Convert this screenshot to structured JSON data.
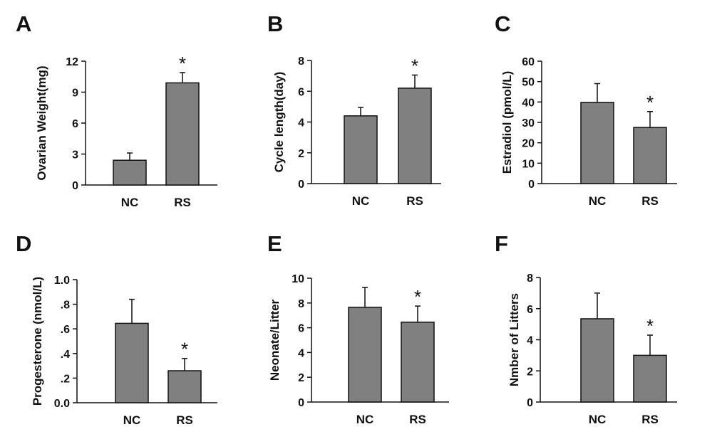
{
  "colors": {
    "bar": "#808080",
    "axis": "#111111"
  },
  "chart_data": [
    {
      "panel": "A",
      "type": "bar",
      "categories": [
        "NC",
        "RS"
      ],
      "values": [
        2.4,
        9.9
      ],
      "errors": [
        0.7,
        1.0
      ],
      "significance": [
        "",
        "*"
      ],
      "ylabel": "Ovarian Weight(mg)",
      "ylim": [
        0,
        12
      ],
      "yticks": [
        0,
        3,
        6,
        9,
        12
      ],
      "ytick_labels": [
        "0",
        "3",
        "6",
        "9",
        "12"
      ]
    },
    {
      "panel": "B",
      "type": "bar",
      "categories": [
        "NC",
        "RS"
      ],
      "values": [
        4.4,
        6.2
      ],
      "errors": [
        0.55,
        0.85
      ],
      "significance": [
        "",
        "*"
      ],
      "ylabel": "Cycle length(day)",
      "ylim": [
        0,
        8
      ],
      "yticks": [
        0,
        2,
        4,
        6,
        8
      ],
      "ytick_labels": [
        "0",
        "2",
        "4",
        "6",
        "8"
      ]
    },
    {
      "panel": "C",
      "type": "bar",
      "categories": [
        "NC",
        "RS"
      ],
      "values": [
        39.8,
        27.5
      ],
      "errors": [
        9.2,
        7.8
      ],
      "significance": [
        "",
        "*"
      ],
      "ylabel": "Estradiol (pmol/L)",
      "ylim": [
        0,
        60
      ],
      "yticks": [
        0,
        10,
        20,
        30,
        40,
        50,
        60
      ],
      "ytick_labels": [
        "0",
        "10",
        "20",
        "30",
        "40",
        "50",
        "60"
      ]
    },
    {
      "panel": "D",
      "type": "bar",
      "categories": [
        "NC",
        "RS"
      ],
      "values": [
        0.645,
        0.26
      ],
      "errors": [
        0.195,
        0.1
      ],
      "significance": [
        "",
        "*"
      ],
      "ylabel": "Progesterone (nmol/L)",
      "ylim": [
        0,
        1.0
      ],
      "yticks": [
        0,
        0.2,
        0.4,
        0.6,
        0.8,
        1.0
      ],
      "ytick_labels": [
        "0.0",
        ".2",
        ".4",
        ".6",
        ".8",
        "1.0"
      ]
    },
    {
      "panel": "E",
      "type": "bar",
      "categories": [
        "NC",
        "RS"
      ],
      "values": [
        7.65,
        6.45
      ],
      "errors": [
        1.6,
        1.3
      ],
      "significance": [
        "",
        "*"
      ],
      "ylabel": "Neonate/Litter",
      "ylim": [
        0,
        10
      ],
      "yticks": [
        0,
        2,
        4,
        6,
        8,
        10
      ],
      "ytick_labels": [
        "0",
        "2",
        "4",
        "6",
        "8",
        "10"
      ]
    },
    {
      "panel": "F",
      "type": "bar",
      "categories": [
        "NC",
        "RS"
      ],
      "values": [
        5.35,
        3.0
      ],
      "errors": [
        1.65,
        1.3
      ],
      "significance": [
        "",
        "*"
      ],
      "ylabel": "Nmber of Litters",
      "ylim": [
        0,
        8
      ],
      "yticks": [
        0,
        2,
        4,
        6,
        8
      ],
      "ytick_labels": [
        "0",
        "2",
        "4",
        "6",
        "8"
      ]
    }
  ]
}
